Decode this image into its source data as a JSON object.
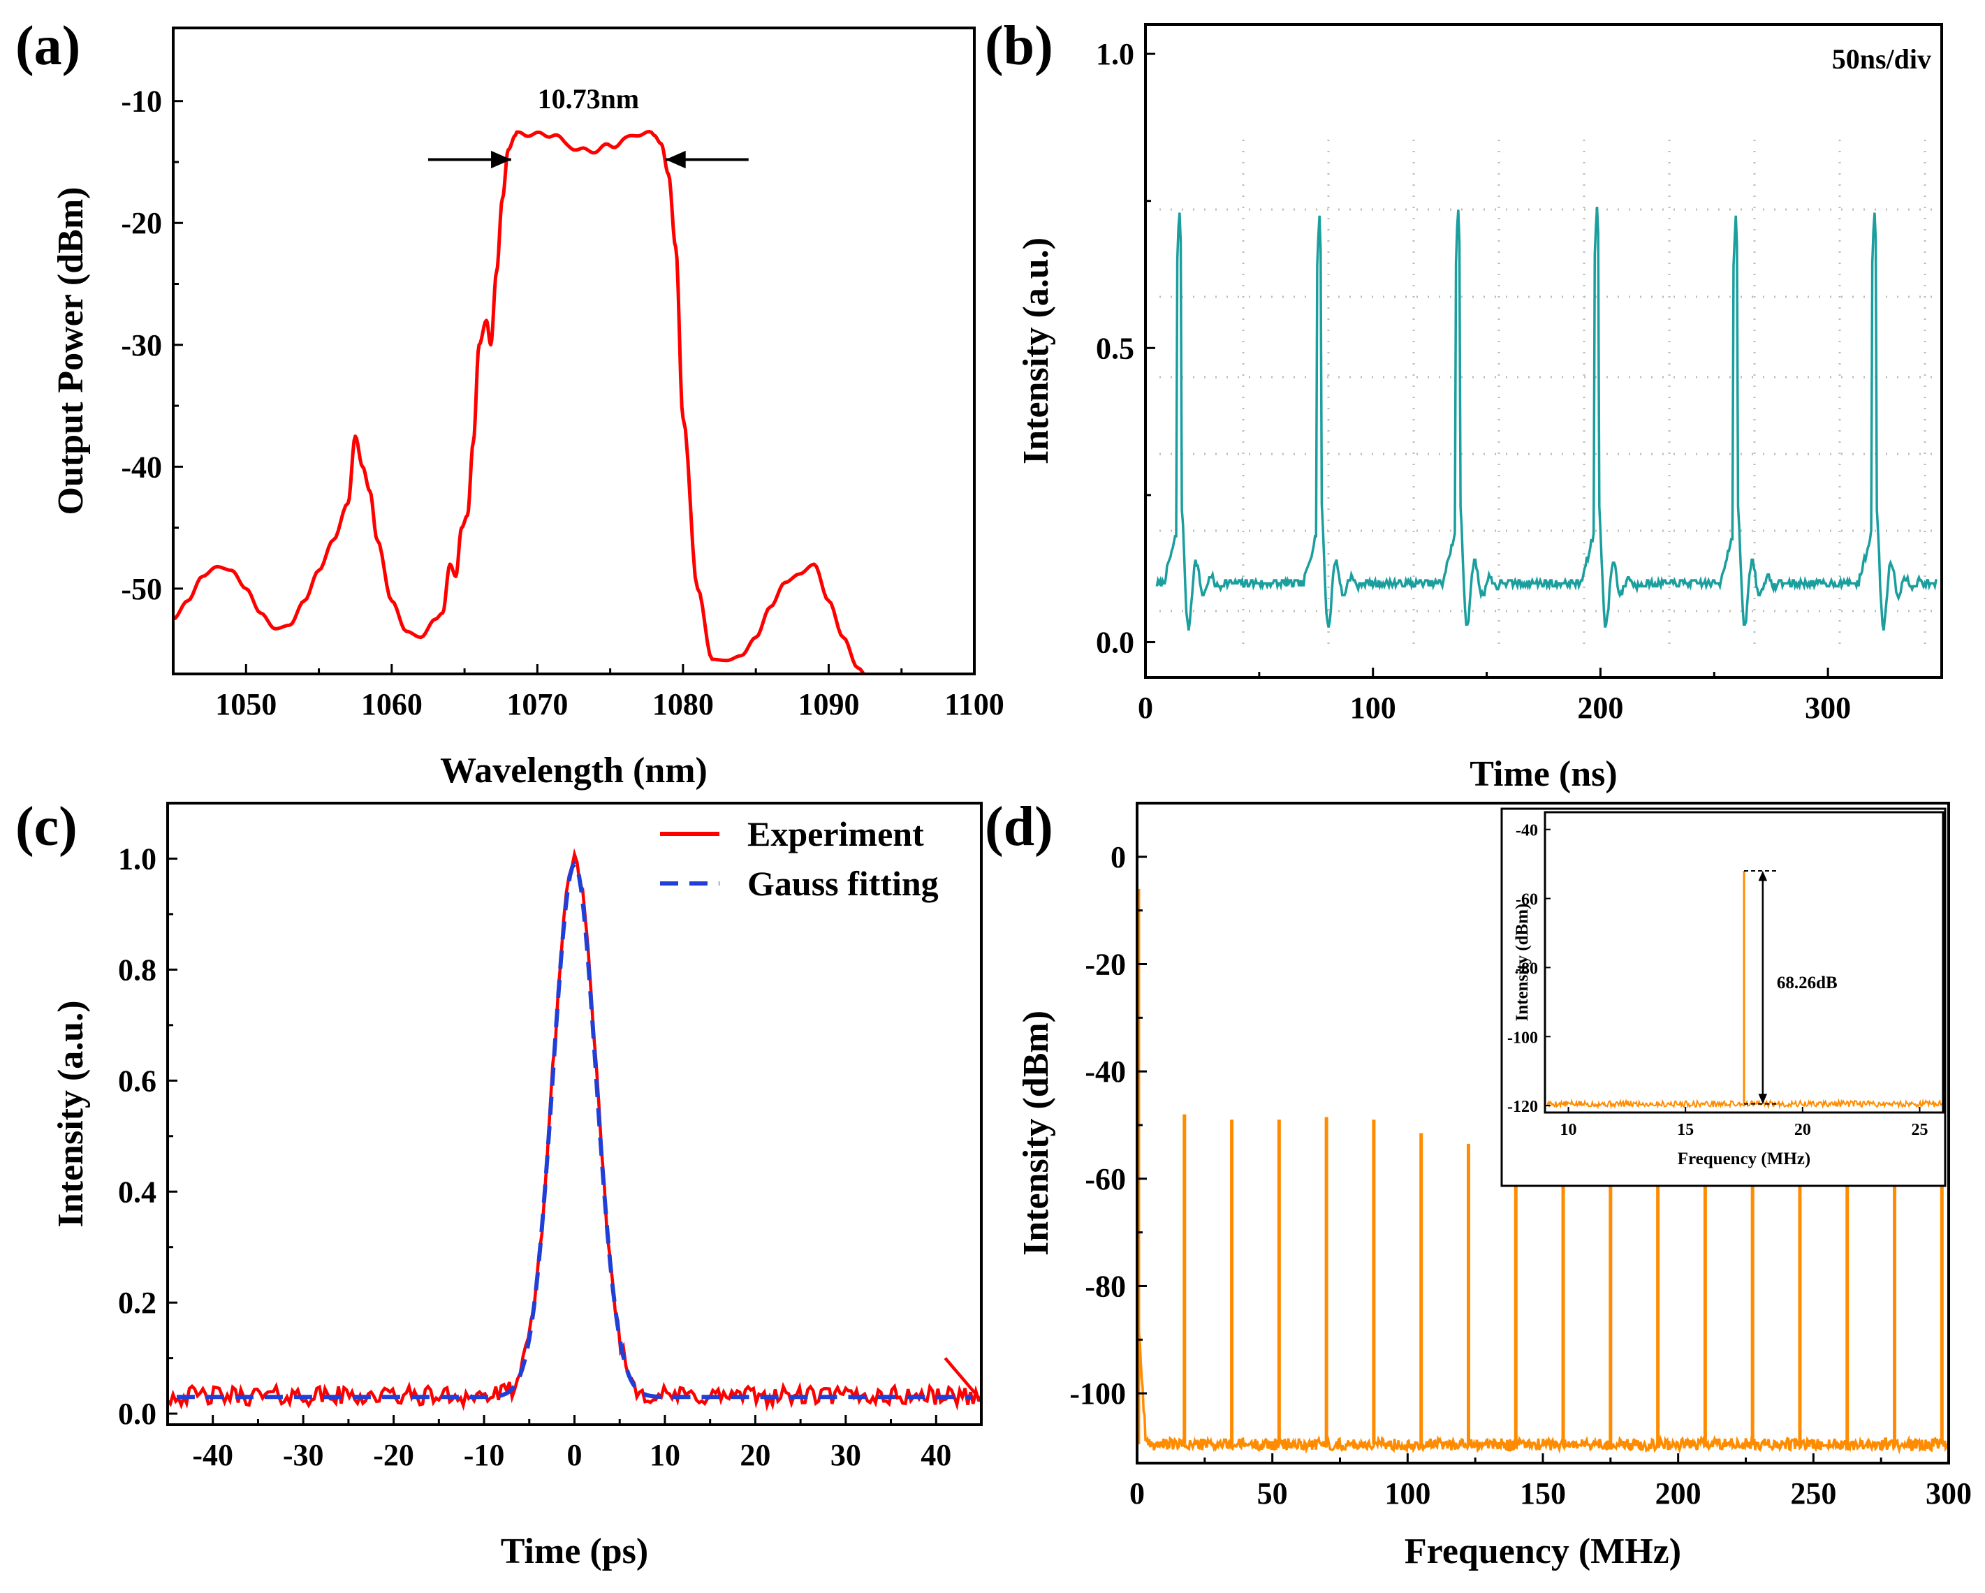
{
  "figure": {
    "panels": [
      {
        "id": "a",
        "label": "(a)"
      },
      {
        "id": "b",
        "label": "(b)"
      },
      {
        "id": "c",
        "label": "(c)"
      },
      {
        "id": "d",
        "label": "(d)"
      }
    ]
  },
  "chart_data": [
    {
      "id": "a",
      "panel_label": "(a)",
      "type": "line",
      "xlabel": "Wavelength (nm)",
      "ylabel": "Output Power (dBm)",
      "xlim": [
        1045,
        1100
      ],
      "ylim": [
        -57,
        -4
      ],
      "xticks": [
        1050,
        1060,
        1070,
        1080,
        1090,
        1100
      ],
      "yticks": [
        -50,
        -40,
        -30,
        -20,
        -10
      ],
      "color": "#ff0000",
      "annotation": "10.73nm",
      "annotation_arrows": [
        {
          "from": [
            1062.5,
            -14.8
          ],
          "to": [
            1068.2,
            -14.8
          ]
        },
        {
          "from": [
            1084.5,
            -14.8
          ],
          "to": [
            1078.8,
            -14.8
          ]
        }
      ],
      "series": [
        {
          "x": [
            1045,
            1046,
            1047,
            1048,
            1049,
            1050,
            1051,
            1052,
            1053,
            1054,
            1055,
            1056,
            1057,
            1057.5,
            1058,
            1058.5,
            1059,
            1060,
            1061,
            1062,
            1063,
            1063.5,
            1064,
            1064.4,
            1064.8,
            1065.2,
            1065.6,
            1066,
            1066.5,
            1066.8,
            1067.2,
            1067.6,
            1068,
            1068.5,
            1069,
            1070,
            1071,
            1072,
            1073,
            1074,
            1075,
            1076,
            1077,
            1078,
            1078.5,
            1079,
            1079.5,
            1080,
            1081,
            1082,
            1083,
            1084,
            1085,
            1086,
            1087,
            1088,
            1089,
            1090,
            1091,
            1092,
            1093
          ],
          "y": [
            -52.5,
            -51,
            -49,
            -48.2,
            -48.5,
            -50,
            -52,
            -53.3,
            -53,
            -51,
            -48.5,
            -46,
            -43,
            -37.5,
            -40,
            -42,
            -46,
            -51,
            -53.5,
            -54,
            -52.5,
            -52,
            -48,
            -49,
            -45,
            -44,
            -38,
            -30,
            -28,
            -30,
            -24,
            -18,
            -14,
            -12.8,
            -12.6,
            -12.8,
            -12.7,
            -13.5,
            -14.1,
            -14,
            -13.7,
            -13.2,
            -12.6,
            -12.8,
            -13.5,
            -16,
            -22,
            -36,
            -50,
            -55.8,
            -55.9,
            -55.5,
            -54,
            -51.5,
            -49.5,
            -48.8,
            -48,
            -51,
            -54,
            -56.5,
            -58
          ]
        }
      ]
    },
    {
      "id": "b",
      "panel_label": "(b)",
      "type": "line",
      "xlabel": "Time (ns)",
      "ylabel": "Intensity (a.u.)",
      "xlim": [
        0,
        350
      ],
      "ylim": [
        -0.06,
        1.05
      ],
      "xticks": [
        0,
        100,
        200,
        300
      ],
      "yticks": [
        0.0,
        0.5,
        1.0
      ],
      "ytick_labels": [
        "0.0",
        "0.5",
        "1.0"
      ],
      "color": "#1a9e9e",
      "annotation": "50ns/div",
      "pulse_period": 61.1,
      "pulse_peaks": [
        {
          "t": 14.0,
          "peak": 0.74
        },
        {
          "t": 75.5,
          "peak": 0.73
        },
        {
          "t": 136.5,
          "peak": 0.74
        },
        {
          "t": 197.5,
          "peak": 0.75
        },
        {
          "t": 258.5,
          "peak": 0.73
        },
        {
          "t": 319.5,
          "peak": 0.74
        }
      ],
      "baseline": 0.1
    },
    {
      "id": "c",
      "panel_label": "(c)",
      "type": "line",
      "xlabel": "Time (ps)",
      "ylabel": "Intensity (a.u.)",
      "xlim": [
        -45,
        45
      ],
      "ylim": [
        -0.02,
        1.1
      ],
      "xticks": [
        -40,
        -30,
        -20,
        -10,
        0,
        10,
        20,
        30,
        40
      ],
      "yticks": [
        0.0,
        0.2,
        0.4,
        0.6,
        0.8,
        1.0
      ],
      "ytick_labels": [
        "0.0",
        "0.2",
        "0.4",
        "0.6",
        "0.8",
        "1.0"
      ],
      "legend_position": "top-right",
      "series": [
        {
          "name": "Experiment",
          "color": "#ff0000",
          "style": "solid",
          "peak": 1.0,
          "center": 0,
          "fwhm": 5.6,
          "offset": 0.032
        },
        {
          "name": "Gauss fitting",
          "color": "#1f3fd6",
          "style": "dashed",
          "peak": 0.99,
          "center": 0,
          "fwhm": 5.6,
          "offset": 0.03
        }
      ]
    },
    {
      "id": "d",
      "panel_label": "(d)",
      "type": "line",
      "xlabel": "Frequency (MHz)",
      "ylabel": "Intensity (dBm)",
      "xlim": [
        0,
        300
      ],
      "ylim": [
        -113,
        10
      ],
      "xticks": [
        0,
        50,
        100,
        150,
        200,
        250,
        300
      ],
      "yticks": [
        -100,
        -80,
        -60,
        -40,
        -20,
        0
      ],
      "color": "#ff8c00",
      "noise_floor": -109.5,
      "harmonics": {
        "x": [
          0.5,
          17.5,
          35,
          52.5,
          70,
          87.5,
          105,
          122.5,
          140,
          157.5,
          175,
          192.5,
          210,
          227.5,
          245,
          262.5,
          280,
          297.5
        ],
        "y": [
          -6,
          -48,
          -49,
          -49,
          -48.5,
          -49,
          -51.5,
          -53.5,
          -54.5,
          -55,
          -57,
          -58.5,
          -59,
          -58,
          -57,
          -57.5,
          -58.5,
          -59
        ]
      },
      "inset": {
        "xlabel": "Frequency (MHz)",
        "ylabel": "Intensity (dBm)",
        "xlim": [
          9,
          26
        ],
        "ylim": [
          -122,
          -35
        ],
        "xticks": [
          10,
          15,
          20,
          25
        ],
        "yticks": [
          -120,
          -100,
          -80,
          -60,
          -40
        ],
        "peak_x": 17.5,
        "peak_y": -52,
        "noise_floor": -119.5,
        "annotation": "68.26dB"
      }
    }
  ]
}
